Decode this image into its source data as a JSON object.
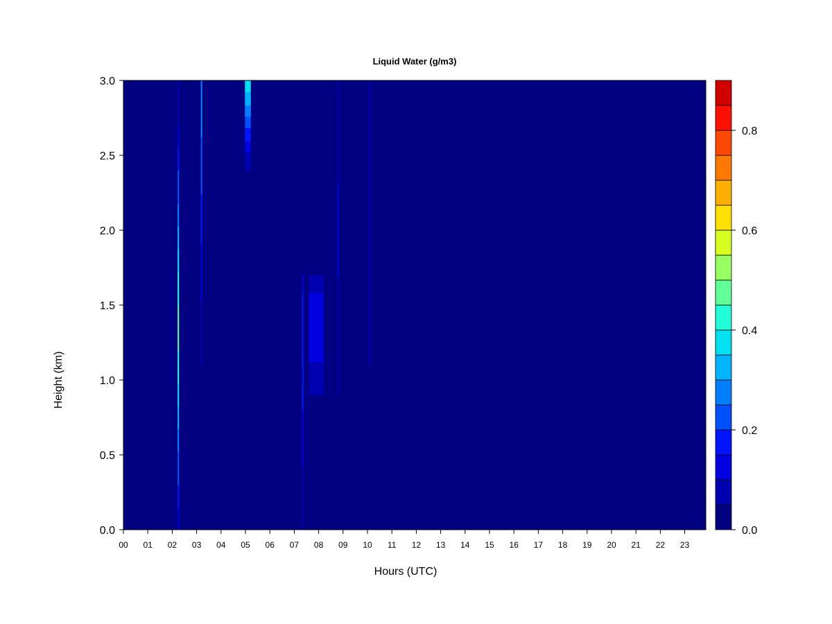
{
  "chart_data": {
    "type": "heatmap",
    "title": "Liquid Water (g/m3)",
    "xlabel": "Hours (UTC)",
    "ylabel": "Height (km)",
    "xlim": [
      0,
      23.9
    ],
    "ylim": [
      0.0,
      3.0
    ],
    "x_ticks": [
      "00",
      "01",
      "02",
      "03",
      "04",
      "05",
      "06",
      "07",
      "08",
      "09",
      "10",
      "11",
      "12",
      "13",
      "14",
      "15",
      "16",
      "17",
      "18",
      "19",
      "20",
      "21",
      "22",
      "23"
    ],
    "y_ticks": [
      "0.0",
      "0.5",
      "1.0",
      "1.5",
      "2.0",
      "2.5",
      "3.0"
    ],
    "colorbar": {
      "range": [
        0.0,
        0.9
      ],
      "step": 0.05,
      "ticks": [
        "0.0",
        "0.2",
        "0.4",
        "0.6",
        "0.8"
      ],
      "colors": [
        "#000080",
        "#0000b0",
        "#0000e0",
        "#0014ff",
        "#0050ff",
        "#0080ff",
        "#00b4ff",
        "#00e0f0",
        "#20ffd8",
        "#60ff98",
        "#98ff60",
        "#d8ff20",
        "#ffe000",
        "#ffb000",
        "#ff7800",
        "#ff4800",
        "#ff1000",
        "#d00000",
        "#8b0000"
      ]
    },
    "features": [
      {
        "name": "02h spike",
        "hour": 2.25,
        "half_width_h": 0.03,
        "height_km": [
          0.0,
          3.0
        ],
        "peak_g_m3": 0.5,
        "peak_height_km": 1.35
      },
      {
        "name": "03h streak",
        "hour": 3.2,
        "half_width_h": 0.03,
        "height_km": [
          1.1,
          3.0
        ],
        "peak_g_m3": 0.3,
        "peak_height_km": 2.95
      },
      {
        "name": "05h upper cloud",
        "hour": 5.1,
        "half_width_h": 0.12,
        "height_km": [
          2.4,
          3.0
        ],
        "peak_g_m3": 0.4,
        "peak_height_km": 3.0
      },
      {
        "name": "07h streaks",
        "hour": 7.35,
        "half_width_h": 0.03,
        "height_km": [
          0.0,
          1.7
        ],
        "peak_g_m3": 0.2,
        "peak_height_km": 1.2
      },
      {
        "name": "08h patch",
        "hour": 7.9,
        "half_width_h": 0.3,
        "height_km": [
          0.9,
          1.7
        ],
        "peak_g_m3": 0.15,
        "peak_height_km": 1.35
      },
      {
        "name": "09h streak",
        "hour": 8.8,
        "half_width_h": 0.03,
        "height_km": [
          0.9,
          3.0
        ],
        "peak_g_m3": 0.12,
        "peak_height_km": 2.0
      },
      {
        "name": "10h streak",
        "hour": 10.1,
        "half_width_h": 0.03,
        "height_km": [
          1.1,
          3.0
        ],
        "peak_g_m3": 0.1,
        "peak_height_km": 2.5
      }
    ]
  }
}
